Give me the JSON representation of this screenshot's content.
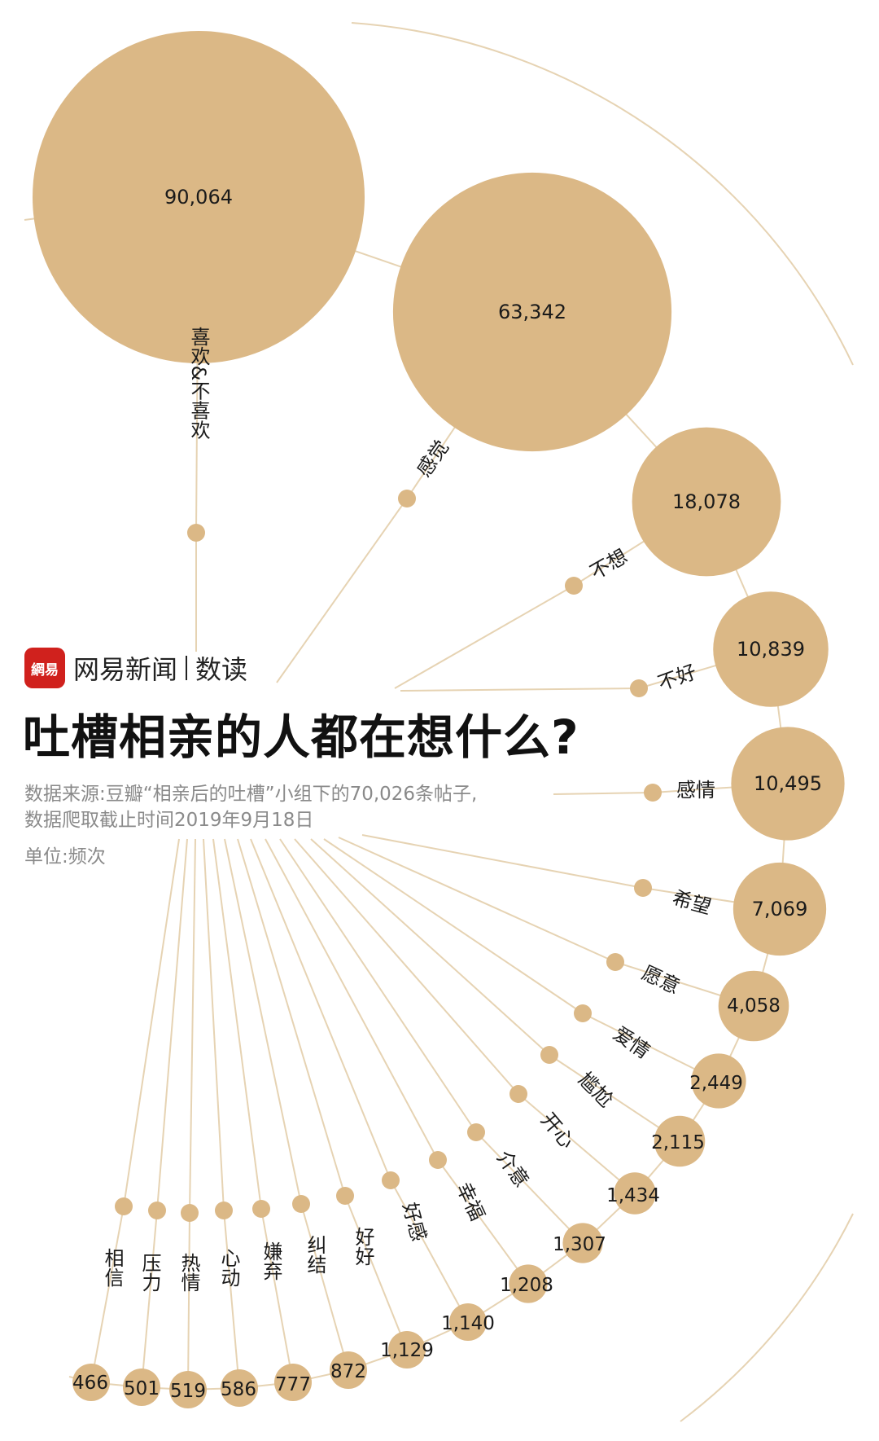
{
  "brand": {
    "logo_text": "網易",
    "name": "网易新闻",
    "section": "数读"
  },
  "title": "吐槽相亲的人都在想什么?",
  "source_line1": "数据来源:豆瓣“相亲后的吐槽”小组下的70,026条帖子,",
  "source_line2": "数据爬取截止时间2019年9月18日",
  "unit": "单位:频次",
  "colors": {
    "bubble": "#dbb886",
    "line": "#e6d3b3",
    "text": "#1a1a1a",
    "title": "#111111",
    "note": "#8a8a8a",
    "brand_red": "#d0211d"
  },
  "chart_data": {
    "type": "bubble",
    "series": [
      {
        "values": [
          90064,
          63342,
          18078,
          10839,
          10495,
          7069,
          4058,
          2449,
          2115,
          1434,
          1307,
          1208,
          1140,
          1129,
          872,
          777,
          586,
          519,
          501,
          466
        ]
      }
    ],
    "categories": [
      "喜欢&不喜欢",
      "感觉",
      "不想",
      "不好",
      "感情",
      "希望",
      "愿意",
      "爱情",
      "尴尬",
      "开心",
      "介意",
      "幸福",
      "好感",
      "好好",
      "纠结",
      "嫌弃",
      "心动",
      "热情",
      "压力",
      "相信"
    ],
    "labels": [
      "90,064",
      "63,342",
      "18,078",
      "10,839",
      "10,495",
      "7,069",
      "4,058",
      "2,449",
      "2,115",
      "1,434",
      "1,307",
      "1,208",
      "1,140",
      "1,129",
      "872",
      "777",
      "586",
      "519",
      "501",
      "466"
    ]
  }
}
